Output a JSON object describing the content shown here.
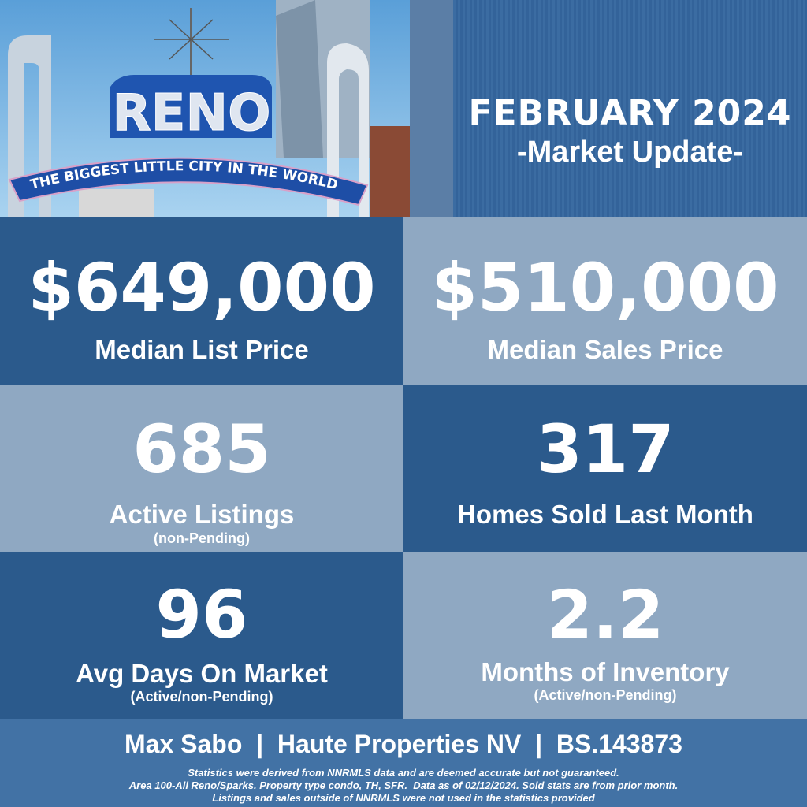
{
  "header": {
    "photo_sign_main": "RENO",
    "photo_sign_banner": "THE BIGGEST LITTLE CITY IN THE WORLD",
    "title": "FEBRUARY 2024",
    "subtitle": "-Market Update-"
  },
  "stats": [
    {
      "value": "$649,000",
      "label": "Median List Price",
      "note": ""
    },
    {
      "value": "$510,000",
      "label": "Median Sales Price",
      "note": ""
    },
    {
      "value": "685",
      "label": "Active Listings",
      "note": "(non-Pending)"
    },
    {
      "value": "317",
      "label": "Homes Sold Last Month",
      "note": ""
    },
    {
      "value": "96",
      "label": "Avg Days On Market",
      "note": "(Active/non-Pending)"
    },
    {
      "value": "2.2",
      "label": "Months of Inventory",
      "note": "(Active/non-Pending)"
    }
  ],
  "footer": {
    "agent_line": "Max Sabo  |  Haute Properties NV  |  BS.143873",
    "disclaimer": [
      "Statistics were derived from NNRMLS data and are deemed accurate but not guaranteed.",
      "Area 100-All Reno/Sparks. Property type condo, TH, SFR.  Data as of 02/12/2024. Sold stats are from prior month.",
      "Listings and sales outside of NNRMLS were not used in the statistics provided"
    ]
  },
  "colors": {
    "dark_blue": "#2b5a8c",
    "light_blue": "#8fa8c2",
    "footer_blue": "#4272a5"
  }
}
